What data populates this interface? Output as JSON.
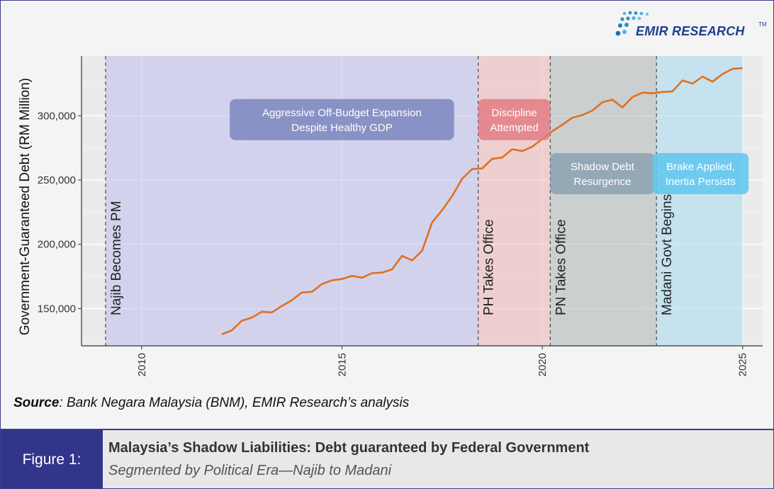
{
  "logo": {
    "name": "EMIR RESEARCH",
    "trademark": "TM",
    "icon": "dots-swoosh-icon",
    "color": "#1f3f8f"
  },
  "source": {
    "label": "Source",
    "text": ": Bank Negara Malaysia (BNM), EMIR Research’s analysis"
  },
  "footer": {
    "figure_label": "Figure 1:",
    "title": "Malaysia’s Shadow Liabilities: Debt guaranteed by Federal Government",
    "subtitle": "Segmented by Political Era—Najib to Madani"
  },
  "chart_data": {
    "type": "line",
    "ylabel": "Government-Guaranteed Debt (RM Million)",
    "xlabel": "",
    "xlim": [
      2008.5,
      2025.5
    ],
    "ylim": [
      121000,
      346500
    ],
    "x_ticks": [
      2010,
      2015,
      2020,
      2025
    ],
    "y_ticks": [
      150000,
      200000,
      250000,
      300000
    ],
    "y_tick_labels": [
      "150,000",
      "200,000",
      "250,000",
      "300,000"
    ],
    "grid": true,
    "line_color": "#e07020",
    "series": [
      {
        "x": [
          2012.0,
          2012.25,
          2012.5,
          2012.75,
          2013.0,
          2013.25,
          2013.5,
          2013.75,
          2014.0,
          2014.25,
          2014.5,
          2014.75,
          2015.0,
          2015.25,
          2015.5,
          2015.75,
          2016.0,
          2016.25,
          2016.5,
          2016.75,
          2017.0,
          2017.25,
          2017.5,
          2017.75,
          2018.0,
          2018.25,
          2018.5,
          2018.75,
          2019.0,
          2019.25,
          2019.5,
          2019.75,
          2020.0,
          2020.25,
          2020.5,
          2020.75,
          2021.0,
          2021.25,
          2021.5,
          2021.75,
          2022.0,
          2022.25,
          2022.5,
          2022.75,
          2023.0,
          2023.25,
          2023.5,
          2023.75,
          2024.0,
          2024.25,
          2024.5,
          2024.75,
          2025.0
        ],
        "values": [
          130000,
          133000,
          140500,
          143000,
          147500,
          147000,
          152000,
          156500,
          162500,
          163000,
          169000,
          172000,
          173000,
          175500,
          174000,
          177500,
          178000,
          180500,
          191000,
          187500,
          195000,
          217000,
          226500,
          237500,
          251000,
          258500,
          259000,
          266500,
          267500,
          274000,
          272500,
          276000,
          282000,
          288000,
          293000,
          298500,
          300500,
          304000,
          310500,
          312500,
          306500,
          314500,
          318000,
          317500,
          318500,
          319000,
          327500,
          325000,
          330500,
          326500,
          332500,
          336500,
          337000
        ]
      }
    ],
    "eras": [
      {
        "start": 2009.1,
        "end": 2018.4,
        "color": "#b3b3f0",
        "opacity": 0.45,
        "label": [
          "Aggressive Off-Budget Expansion",
          "Despite Healthy GDP"
        ],
        "box_color": "#7c87bd",
        "box_x_center": 2015.0,
        "box_y_center": 297000,
        "box_w": 5.6
      },
      {
        "start": 2018.4,
        "end": 2020.2,
        "color": "#f2a6a6",
        "opacity": 0.4,
        "label": [
          "Discipline",
          "Attempted"
        ],
        "box_color": "#e07d84",
        "box_x_center": 2019.3,
        "box_y_center": 297000,
        "box_w": 1.8
      },
      {
        "start": 2020.2,
        "end": 2022.85,
        "color": "#9aa6a6",
        "opacity": 0.4,
        "label": [
          "Shadow Debt",
          "Resurgence"
        ],
        "box_color": "#8ba1b1",
        "box_x_center": 2021.5,
        "box_y_center": 255000,
        "box_w": 2.6
      },
      {
        "start": 2022.85,
        "end": 2025.0,
        "color": "#9fdaf2",
        "opacity": 0.5,
        "label": [
          "Brake Applied,",
          "Inertia Persists"
        ],
        "box_color": "#5ec6ef",
        "box_x_center": 2023.95,
        "box_y_center": 255000,
        "box_w": 2.4
      }
    ],
    "events": [
      {
        "x": 2009.1,
        "label": "Najib Becomes PM"
      },
      {
        "x": 2018.4,
        "label": "PH Takes Office"
      },
      {
        "x": 2020.2,
        "label": "PN Takes Office"
      },
      {
        "x": 2022.85,
        "label": "Madani Govt Begins"
      }
    ]
  }
}
